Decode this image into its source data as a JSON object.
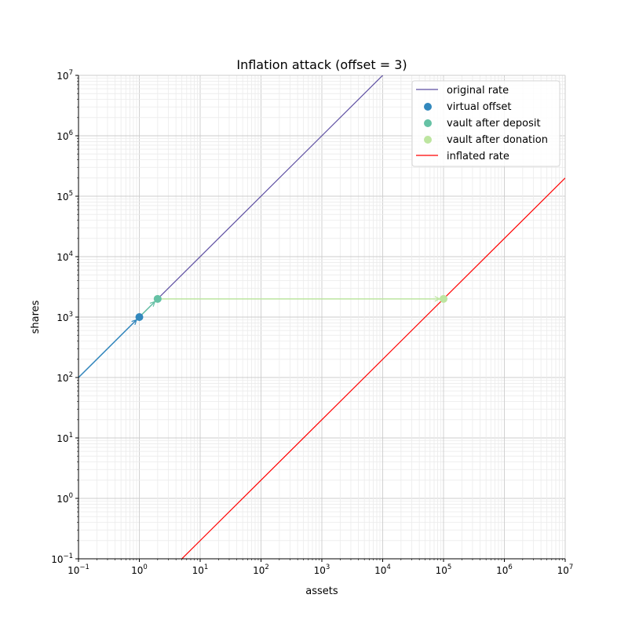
{
  "chart_data": {
    "type": "line",
    "title": "Inflation attack (offset = 3)",
    "xlabel": "assets",
    "ylabel": "shares",
    "xscale": "log",
    "yscale": "log",
    "xlim": [
      0.1,
      10000000
    ],
    "ylim": [
      0.1,
      10000000
    ],
    "grid": true,
    "legend_position": "top-right",
    "x_ticks": [
      {
        "base": "10",
        "exp": "−1"
      },
      {
        "base": "10",
        "exp": "0"
      },
      {
        "base": "10",
        "exp": "1"
      },
      {
        "base": "10",
        "exp": "2"
      },
      {
        "base": "10",
        "exp": "3"
      },
      {
        "base": "10",
        "exp": "4"
      },
      {
        "base": "10",
        "exp": "5"
      },
      {
        "base": "10",
        "exp": "6"
      },
      {
        "base": "10",
        "exp": "7"
      }
    ],
    "y_ticks": [
      {
        "base": "10",
        "exp": "−1"
      },
      {
        "base": "10",
        "exp": "0"
      },
      {
        "base": "10",
        "exp": "1"
      },
      {
        "base": "10",
        "exp": "2"
      },
      {
        "base": "10",
        "exp": "3"
      },
      {
        "base": "10",
        "exp": "4"
      },
      {
        "base": "10",
        "exp": "5"
      },
      {
        "base": "10",
        "exp": "6"
      },
      {
        "base": "10",
        "exp": "7"
      }
    ],
    "series": [
      {
        "name": "original rate",
        "kind": "line",
        "color": "#5e4fa2",
        "x": [
          0.1,
          10000000
        ],
        "y": [
          100,
          10000000000
        ]
      },
      {
        "name": "virtual offset",
        "kind": "scatter",
        "color": "#3288bd",
        "x": [
          1
        ],
        "y": [
          1000
        ]
      },
      {
        "name": "vault after deposit",
        "kind": "scatter",
        "color": "#66c2a5",
        "x": [
          2
        ],
        "y": [
          2000
        ]
      },
      {
        "name": "vault after donation",
        "kind": "scatter",
        "color": "#bde5a0",
        "x": [
          100000
        ],
        "y": [
          2000
        ]
      },
      {
        "name": "inflated rate",
        "kind": "line",
        "color": "#ff0000",
        "x": [
          0.1,
          10000000
        ],
        "y": [
          0.002,
          200000
        ]
      }
    ],
    "arrows": [
      {
        "from": [
          0.1,
          100
        ],
        "to": [
          1,
          1000
        ],
        "color": "#3288bd"
      },
      {
        "from": [
          1,
          1000
        ],
        "to": [
          2,
          2000
        ],
        "color": "#66c2a5"
      },
      {
        "from": [
          2,
          2000
        ],
        "to": [
          100000,
          2000
        ],
        "color": "#bde5a0"
      }
    ]
  }
}
